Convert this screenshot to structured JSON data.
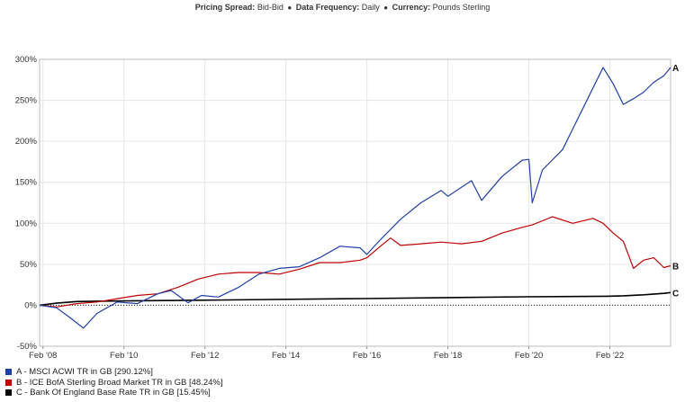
{
  "header": {
    "pricing_label": "Pricing Spread:",
    "pricing_value": "Bid-Bid",
    "frequency_label": "Data Frequency:",
    "frequency_value": "Daily",
    "currency_label": "Currency:",
    "currency_value": "Pounds Sterling",
    "separator": "●"
  },
  "chart_data": {
    "type": "line",
    "title": "",
    "xlabel": "",
    "ylabel": "",
    "x_range": [
      "2008-01",
      "2023-08"
    ],
    "ylim": [
      -50,
      300
    ],
    "y_ticks": [
      -50,
      0,
      50,
      100,
      150,
      200,
      250,
      300
    ],
    "y_tick_labels": [
      "-50%",
      "0%",
      "50%",
      "100%",
      "150%",
      "200%",
      "250%",
      "300%"
    ],
    "x_ticks": [
      "2008-02",
      "2010-02",
      "2012-02",
      "2014-02",
      "2016-02",
      "2018-02",
      "2020-02",
      "2022-02"
    ],
    "x_tick_labels": [
      "Feb '08",
      "Feb '10",
      "Feb '12",
      "Feb '14",
      "Feb '16",
      "Feb '18",
      "Feb '20",
      "Feb '22"
    ],
    "grid": true,
    "zero_line": "dotted",
    "legend_position": "bottom-left",
    "series": [
      {
        "name": "A - MSCI ACWI TR in GB [290.12%]",
        "end_label": "A",
        "color": "#1f3fa6",
        "points": [
          [
            "2008-01",
            0
          ],
          [
            "2008-06",
            -3
          ],
          [
            "2008-10",
            -15
          ],
          [
            "2009-02",
            -28
          ],
          [
            "2009-06",
            -10
          ],
          [
            "2009-12",
            4
          ],
          [
            "2010-06",
            2
          ],
          [
            "2010-12",
            14
          ],
          [
            "2011-04",
            18
          ],
          [
            "2011-09",
            3
          ],
          [
            "2012-01",
            12
          ],
          [
            "2012-06",
            10
          ],
          [
            "2012-12",
            22
          ],
          [
            "2013-06",
            38
          ],
          [
            "2013-12",
            45
          ],
          [
            "2014-06",
            47
          ],
          [
            "2014-12",
            58
          ],
          [
            "2015-06",
            72
          ],
          [
            "2015-12",
            70
          ],
          [
            "2016-02",
            62
          ],
          [
            "2016-06",
            80
          ],
          [
            "2016-12",
            105
          ],
          [
            "2017-06",
            125
          ],
          [
            "2017-12",
            140
          ],
          [
            "2018-02",
            133
          ],
          [
            "2018-09",
            152
          ],
          [
            "2018-12",
            128
          ],
          [
            "2019-06",
            157
          ],
          [
            "2019-12",
            177
          ],
          [
            "2020-02",
            178
          ],
          [
            "2020-03",
            125
          ],
          [
            "2020-06",
            165
          ],
          [
            "2020-12",
            190
          ],
          [
            "2021-06",
            240
          ],
          [
            "2021-12",
            290
          ],
          [
            "2022-03",
            270
          ],
          [
            "2022-06",
            245
          ],
          [
            "2022-09",
            252
          ],
          [
            "2022-12",
            260
          ],
          [
            "2023-03",
            272
          ],
          [
            "2023-06",
            280
          ],
          [
            "2023-08",
            290.12
          ]
        ]
      },
      {
        "name": "B - ICE BofA Sterling Broad Market TR in GB [48.24%]",
        "end_label": "B",
        "color": "#c00000",
        "points": [
          [
            "2008-01",
            0
          ],
          [
            "2008-06",
            -2
          ],
          [
            "2008-12",
            2
          ],
          [
            "2009-06",
            4
          ],
          [
            "2009-12",
            8
          ],
          [
            "2010-06",
            12
          ],
          [
            "2010-12",
            14
          ],
          [
            "2011-06",
            22
          ],
          [
            "2011-12",
            32
          ],
          [
            "2012-06",
            38
          ],
          [
            "2012-12",
            40
          ],
          [
            "2013-06",
            40
          ],
          [
            "2013-12",
            38
          ],
          [
            "2014-06",
            44
          ],
          [
            "2014-12",
            52
          ],
          [
            "2015-06",
            52
          ],
          [
            "2015-12",
            55
          ],
          [
            "2016-02",
            58
          ],
          [
            "2016-06",
            72
          ],
          [
            "2016-09",
            82
          ],
          [
            "2016-12",
            73
          ],
          [
            "2017-06",
            75
          ],
          [
            "2017-12",
            77
          ],
          [
            "2018-06",
            75
          ],
          [
            "2018-12",
            78
          ],
          [
            "2019-06",
            88
          ],
          [
            "2019-12",
            95
          ],
          [
            "2020-03",
            98
          ],
          [
            "2020-09",
            108
          ],
          [
            "2021-03",
            100
          ],
          [
            "2021-09",
            106
          ],
          [
            "2021-12",
            100
          ],
          [
            "2022-03",
            88
          ],
          [
            "2022-06",
            78
          ],
          [
            "2022-09",
            45
          ],
          [
            "2022-12",
            55
          ],
          [
            "2023-03",
            58
          ],
          [
            "2023-06",
            46
          ],
          [
            "2023-08",
            48.24
          ]
        ]
      },
      {
        "name": "C - Bank Of England Base Rate TR in GB [15.45%]",
        "end_label": "C",
        "color": "#000000",
        "points": [
          [
            "2008-01",
            0
          ],
          [
            "2008-06",
            2.5
          ],
          [
            "2008-12",
            4.5
          ],
          [
            "2009-06",
            5
          ],
          [
            "2012-01",
            6.2
          ],
          [
            "2016-01",
            8.2
          ],
          [
            "2020-01",
            10.3
          ],
          [
            "2022-01",
            11
          ],
          [
            "2022-06",
            11.6
          ],
          [
            "2022-12",
            12.8
          ],
          [
            "2023-06",
            14.5
          ],
          [
            "2023-08",
            15.45
          ]
        ]
      }
    ]
  }
}
